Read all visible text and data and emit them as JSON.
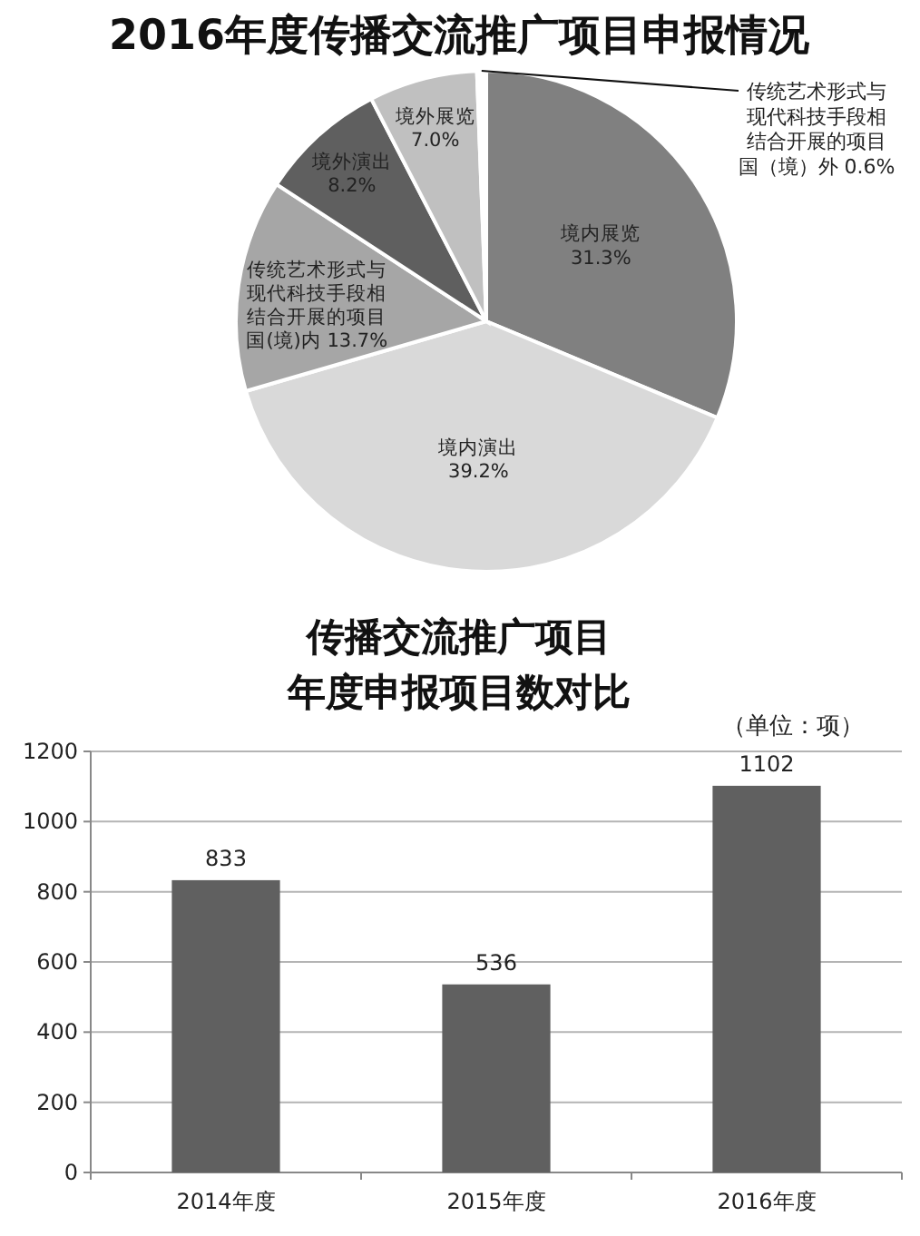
{
  "chart_data": [
    {
      "type": "pie",
      "title": "2016年度传播交流推广项目申报情况",
      "categories": [
        "境内展览",
        "境内演出",
        "传统艺术形式与现代科技手段相结合开展的项目国(境)内",
        "境外演出",
        "境外展览",
        "传统艺术形式与现代科技手段相结合开展的项目国（境）外"
      ],
      "values": [
        31.3,
        39.2,
        13.7,
        8.2,
        7.0,
        0.6
      ],
      "colors": [
        "#808080",
        "#d9d9d9",
        "#a6a6a6",
        "#5f5f5f",
        "#c0c0c0",
        "#ffffff"
      ],
      "value_labels": [
        "31.3%",
        "39.2%",
        "13.7%",
        "8.2%",
        "7.0%",
        "0.6%"
      ]
    },
    {
      "type": "bar",
      "title": "传播交流推广项目年度申报项目数对比",
      "annotations": [
        "（单位：项）"
      ],
      "categories": [
        "2014年度",
        "2015年度",
        "2016年度"
      ],
      "values": [
        833,
        536,
        1102
      ],
      "color": "#606060",
      "ylim": [
        0,
        1200
      ],
      "yticks": [
        0,
        200,
        400,
        600,
        800,
        1000,
        1200
      ],
      "grid": "y",
      "data_labels": true
    }
  ]
}
